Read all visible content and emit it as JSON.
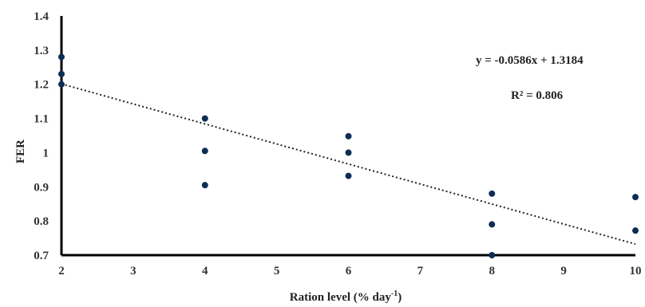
{
  "chart_data": {
    "type": "scatter",
    "xlabel": "Ration level (% day",
    "xlabel_sup": "-1",
    "xlabel_suffix": ")",
    "ylabel": "FER",
    "xlim": [
      2,
      10
    ],
    "ylim": [
      0.7,
      1.4
    ],
    "x_ticks": [
      "2",
      "3",
      "4",
      "5",
      "6",
      "7",
      "8",
      "9",
      "10"
    ],
    "y_ticks": [
      "0.7",
      "0.8",
      "0.9",
      "1",
      "1.1",
      "1.2",
      "1.3",
      "1.4"
    ],
    "points": [
      {
        "x": 2,
        "y": 1.28
      },
      {
        "x": 2,
        "y": 1.23
      },
      {
        "x": 2,
        "y": 1.2
      },
      {
        "x": 4,
        "y": 1.1
      },
      {
        "x": 4,
        "y": 1.005
      },
      {
        "x": 4,
        "y": 0.905
      },
      {
        "x": 6,
        "y": 1.048
      },
      {
        "x": 6,
        "y": 1.0
      },
      {
        "x": 6,
        "y": 0.932
      },
      {
        "x": 8,
        "y": 0.88
      },
      {
        "x": 8,
        "y": 0.79
      },
      {
        "x": 8,
        "y": 0.7
      },
      {
        "x": 10,
        "y": 0.87
      },
      {
        "x": 10,
        "y": 0.772
      }
    ],
    "trendline": {
      "slope": -0.0586,
      "intercept": 1.3184,
      "x_from": 2,
      "x_to": 10
    },
    "equation": "y = -0.0586x + 1.3184",
    "r2": "R² = 0.806",
    "grid": false,
    "colors": {
      "point": "#0d2d55",
      "axis": "#000000",
      "trend": "#222222"
    }
  }
}
